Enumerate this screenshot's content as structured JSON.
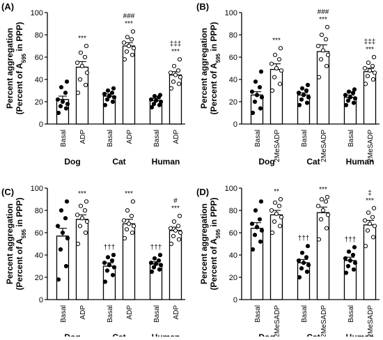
{
  "chart_data": [
    {
      "id": "A",
      "type": "bar",
      "panel_label": "(A)",
      "ylabel": "Percent aggregation",
      "ylabel2_prefix": "(Percent of A",
      "ylabel2_sub": "595",
      "ylabel2_suffix": " in PPP)",
      "ylim": [
        0,
        100
      ],
      "yticks": [
        "0",
        "20",
        "40",
        "60",
        "80",
        "100"
      ],
      "groups": [
        "Dog",
        "Cat",
        "Human"
      ],
      "bars": [
        {
          "label": "Basal",
          "group": "Dog",
          "mean": 22,
          "sem": 3,
          "filled": true,
          "annot": [],
          "points": [
            10,
            14,
            16,
            18,
            20,
            22,
            28,
            33,
            38
          ]
        },
        {
          "label": "ADP",
          "group": "Dog",
          "mean": 51,
          "sem": 5,
          "filled": false,
          "annot": [
            "***"
          ],
          "points": [
            28,
            35,
            40,
            46,
            52,
            55,
            60,
            64,
            70
          ]
        },
        {
          "label": "Basal",
          "group": "Cat",
          "mean": 25,
          "sem": 2,
          "filled": true,
          "annot": [],
          "points": [
            17,
            20,
            22,
            24,
            25,
            27,
            28,
            30,
            32
          ]
        },
        {
          "label": "ADP",
          "group": "Cat",
          "mean": 70,
          "sem": 3,
          "filled": false,
          "annot": [
            "###",
            "***"
          ],
          "points": [
            58,
            62,
            65,
            68,
            70,
            73,
            76,
            78,
            83
          ]
        },
        {
          "label": "Basal",
          "group": "Human",
          "mean": 21,
          "sem": 2,
          "filled": true,
          "annot": [],
          "points": [
            15,
            17,
            18,
            20,
            21,
            22,
            24,
            25,
            26
          ]
        },
        {
          "label": "ADP",
          "group": "Human",
          "mean": 44,
          "sem": 3,
          "filled": false,
          "annot": [
            "‡‡‡",
            "***"
          ],
          "points": [
            32,
            36,
            38,
            42,
            44,
            46,
            48,
            52,
            58
          ]
        }
      ]
    },
    {
      "id": "B",
      "type": "bar",
      "panel_label": "(B)",
      "ylabel": "Percent aggregation",
      "ylabel2_prefix": "(Percent of A",
      "ylabel2_sub": "595",
      "ylabel2_suffix": " in PPP)",
      "ylim": [
        0,
        100
      ],
      "yticks": [
        "0",
        "20",
        "40",
        "60",
        "80",
        "100"
      ],
      "groups": [
        "Dog",
        "Cat",
        "Human"
      ],
      "bars": [
        {
          "label": "Basal",
          "group": "Dog",
          "mean": 26,
          "sem": 3,
          "filled": true,
          "annot": [],
          "points": [
            10,
            14,
            20,
            24,
            26,
            29,
            33,
            38,
            47
          ]
        },
        {
          "label": "2MeSADP",
          "group": "Dog",
          "mean": 49,
          "sem": 5,
          "filled": false,
          "annot": [
            "***"
          ],
          "points": [
            30,
            36,
            42,
            48,
            50,
            54,
            58,
            62,
            68
          ]
        },
        {
          "label": "Basal",
          "group": "Cat",
          "mean": 26,
          "sem": 2,
          "filled": true,
          "annot": [],
          "points": [
            17,
            19,
            22,
            24,
            26,
            28,
            30,
            32,
            35
          ]
        },
        {
          "label": "2MeSADP",
          "group": "Cat",
          "mean": 65,
          "sem": 6,
          "filled": false,
          "annot": [
            "###",
            "***"
          ],
          "points": [
            42,
            52,
            58,
            62,
            66,
            70,
            76,
            80,
            87
          ]
        },
        {
          "label": "Basal",
          "group": "Human",
          "mean": 24,
          "sem": 2,
          "filled": true,
          "annot": [],
          "points": [
            17,
            19,
            21,
            23,
            24,
            26,
            28,
            29,
            31
          ]
        },
        {
          "label": "2MeSADP",
          "group": "Human",
          "mean": 47,
          "sem": 3,
          "filled": false,
          "annot": [
            "‡‡‡",
            "***"
          ],
          "points": [
            36,
            40,
            43,
            46,
            48,
            50,
            52,
            55,
            60
          ]
        }
      ]
    },
    {
      "id": "C",
      "type": "bar",
      "panel_label": "(C)",
      "ylabel": "Percent aggregation",
      "ylabel2_prefix": "(Percent of A",
      "ylabel2_sub": "595",
      "ylabel2_suffix": " in PPP)",
      "ylim": [
        0,
        100
      ],
      "yticks": [
        "0",
        "20",
        "40",
        "60",
        "80",
        "100"
      ],
      "groups": [
        "Dog",
        "Cat",
        "Human"
      ],
      "bars": [
        {
          "label": "Basal",
          "group": "Dog",
          "mean": 57,
          "sem": 7,
          "filled": true,
          "annot": [],
          "points": [
            18,
            30,
            45,
            55,
            60,
            66,
            73,
            80,
            88
          ]
        },
        {
          "label": "ADP",
          "group": "Dog",
          "mean": 72,
          "sem": 4,
          "filled": false,
          "annot": [
            "***"
          ],
          "points": [
            50,
            60,
            66,
            70,
            73,
            76,
            80,
            84,
            88
          ]
        },
        {
          "label": "Basal",
          "group": "Cat",
          "mean": 30,
          "sem": 3,
          "filled": true,
          "annot": [
            "†††"
          ],
          "points": [
            16,
            22,
            26,
            29,
            31,
            33,
            35,
            38,
            40
          ]
        },
        {
          "label": "ADP",
          "group": "Cat",
          "mean": 68,
          "sem": 4,
          "filled": false,
          "annot": [
            "***"
          ],
          "points": [
            55,
            60,
            63,
            66,
            68,
            71,
            75,
            80,
            88
          ]
        },
        {
          "label": "Basal",
          "group": "Human",
          "mean": 32,
          "sem": 2,
          "filled": true,
          "annot": [
            "†††"
          ],
          "points": [
            25,
            27,
            29,
            31,
            32,
            33,
            35,
            37,
            40
          ]
        },
        {
          "label": "ADP",
          "group": "Human",
          "mean": 62,
          "sem": 3,
          "filled": false,
          "annot": [
            "#",
            "***"
          ],
          "points": [
            50,
            54,
            57,
            60,
            62,
            64,
            66,
            70,
            75
          ]
        }
      ]
    },
    {
      "id": "D",
      "type": "bar",
      "panel_label": "(D)",
      "ylabel": "Percent aggregation",
      "ylabel2_prefix": "(Percent of A",
      "ylabel2_sub": "595",
      "ylabel2_suffix": " in PPP)",
      "ylim": [
        0,
        100
      ],
      "yticks": [
        "0",
        "20",
        "40",
        "60",
        "80",
        "100"
      ],
      "groups": [
        "Dog",
        "Cat",
        "Human"
      ],
      "bars": [
        {
          "label": "Basal",
          "group": "Dog",
          "mean": 64,
          "sem": 5,
          "filled": true,
          "annot": [],
          "points": [
            45,
            52,
            58,
            62,
            65,
            68,
            72,
            80,
            88
          ]
        },
        {
          "label": "2MeSADP",
          "group": "Dog",
          "mean": 76,
          "sem": 4,
          "filled": false,
          "annot": [
            "**"
          ],
          "points": [
            60,
            66,
            70,
            74,
            77,
            80,
            84,
            87,
            90
          ]
        },
        {
          "label": "Basal",
          "group": "Cat",
          "mean": 33,
          "sem": 3,
          "filled": true,
          "annot": [
            "†††"
          ],
          "points": [
            20,
            25,
            28,
            31,
            33,
            35,
            38,
            42,
            48
          ]
        },
        {
          "label": "2MeSADP",
          "group": "Cat",
          "mean": 78,
          "sem": 5,
          "filled": false,
          "annot": [
            "***"
          ],
          "points": [
            54,
            64,
            72,
            76,
            80,
            84,
            88,
            90,
            92
          ]
        },
        {
          "label": "Basal",
          "group": "Human",
          "mean": 35,
          "sem": 3,
          "filled": true,
          "annot": [
            "†††"
          ],
          "points": [
            24,
            27,
            30,
            33,
            35,
            37,
            40,
            43,
            47
          ]
        },
        {
          "label": "2MeSADP",
          "group": "Human",
          "mean": 67,
          "sem": 4,
          "filled": false,
          "annot": [
            "‡",
            "***"
          ],
          "points": [
            48,
            56,
            62,
            66,
            68,
            71,
            74,
            78,
            82
          ]
        }
      ]
    }
  ]
}
